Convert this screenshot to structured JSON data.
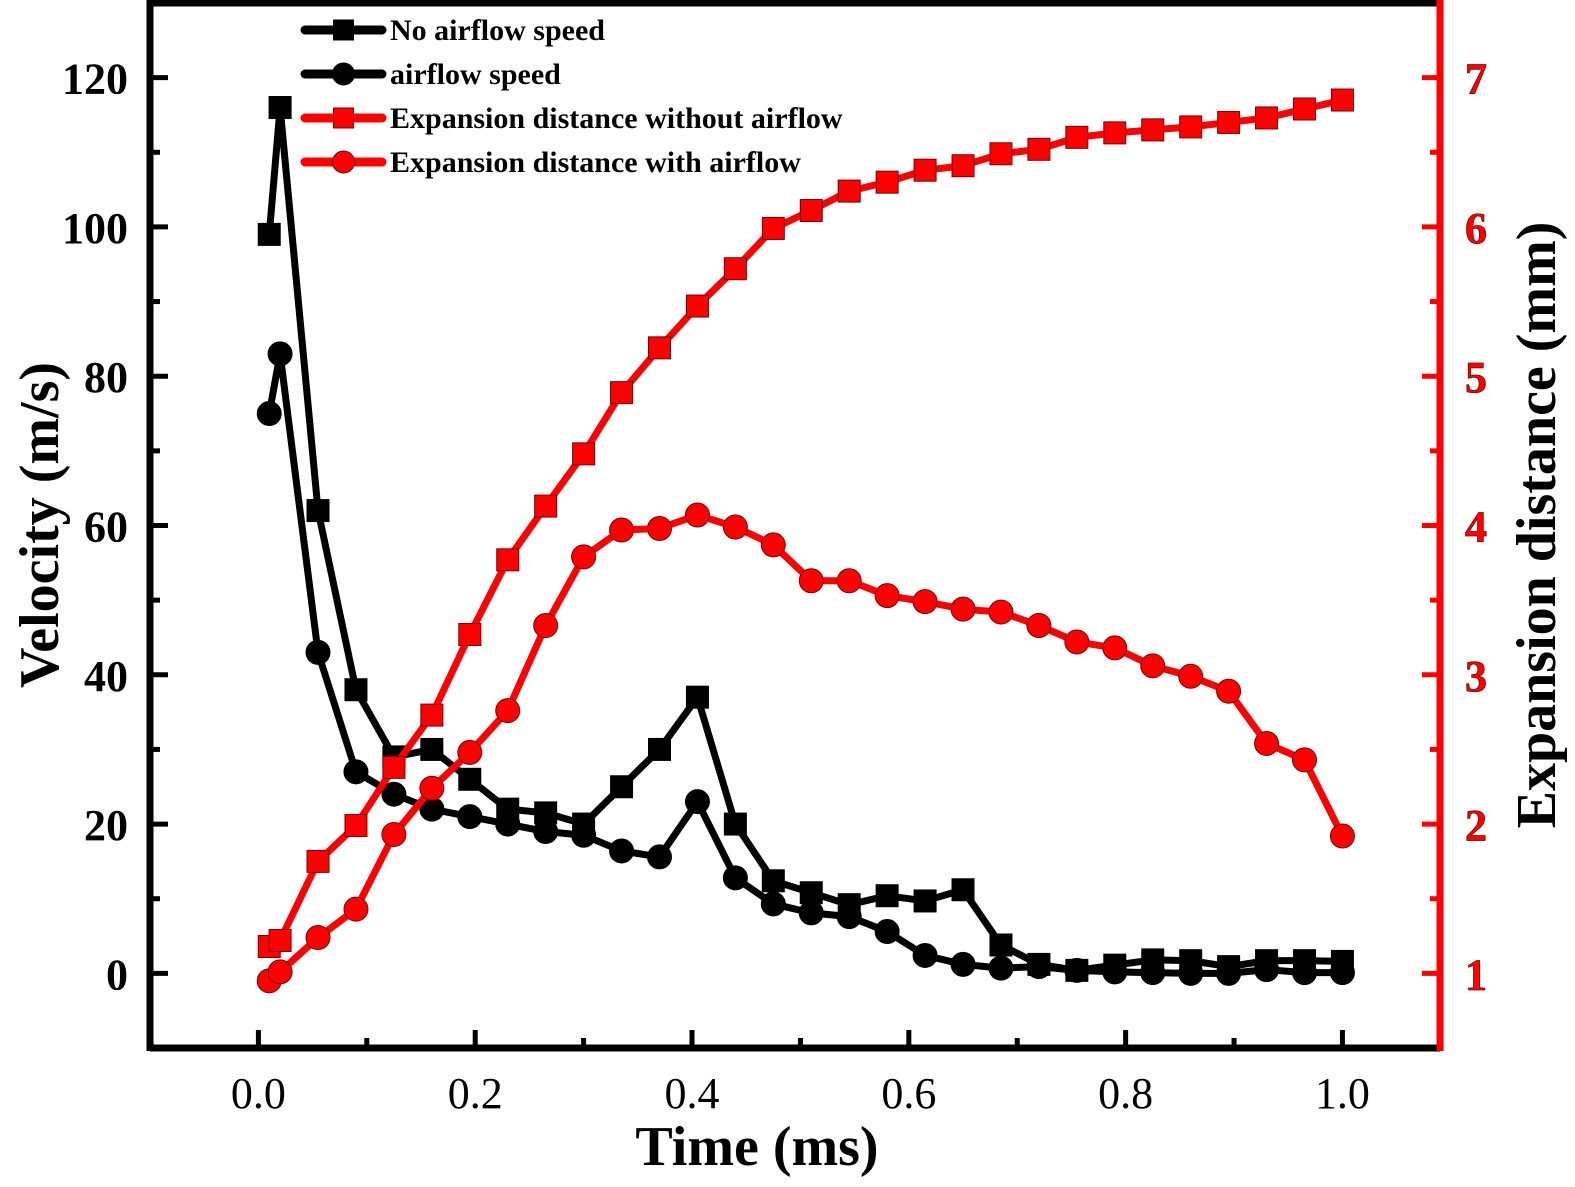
{
  "chart_data": {
    "type": "line",
    "title": "",
    "xlabel": "Time (ms)",
    "ylabel": "Velocity (m/s)",
    "y2label": "Expansion distance (mm)",
    "xlim": [
      -0.1,
      1.09
    ],
    "ylim": [
      -10,
      130
    ],
    "y2lim": [
      0.5,
      7.5
    ],
    "grid": false,
    "legend_position": "top-left",
    "xticks": [
      0.0,
      0.2,
      0.4,
      0.6,
      0.8,
      1.0
    ],
    "xtick_labels": [
      "0.0",
      "0.2",
      "0.4",
      "0.6",
      "0.8",
      "1.0"
    ],
    "yticks": [
      0,
      20,
      40,
      60,
      80,
      100,
      120
    ],
    "ytick_labels": [
      "0",
      "20",
      "40",
      "60",
      "80",
      "100",
      "120"
    ],
    "y2ticks": [
      1,
      2,
      3,
      4,
      5,
      6,
      7
    ],
    "y2tick_labels": [
      "1",
      "2",
      "3",
      "4",
      "5",
      "6",
      "7"
    ],
    "x": [
      0.01,
      0.02,
      0.055,
      0.09,
      0.125,
      0.16,
      0.195,
      0.23,
      0.265,
      0.3,
      0.335,
      0.37,
      0.405,
      0.44,
      0.475,
      0.51,
      0.545,
      0.58,
      0.615,
      0.65,
      0.685,
      0.72,
      0.755,
      0.79,
      0.825,
      0.86,
      0.895,
      0.93,
      0.965,
      1.0
    ],
    "series": [
      {
        "name": "No airflow speed",
        "axis": "left",
        "color": "#000000",
        "marker": "square",
        "values": [
          99,
          116,
          62,
          38,
          29,
          30,
          26,
          22,
          21.5,
          20,
          25,
          30,
          37,
          20,
          12.4,
          10.8,
          9.2,
          10.4,
          9.7,
          11.2,
          3.8,
          1.2,
          0.4,
          1.1,
          1.8,
          1.7,
          0.9,
          1.7,
          1.7,
          1.6
        ]
      },
      {
        "name": "airflow speed",
        "axis": "left",
        "color": "#000000",
        "marker": "circle",
        "values": [
          75,
          83,
          43,
          27,
          24,
          22,
          21,
          20,
          19,
          18.5,
          16.4,
          15.6,
          23,
          12.8,
          9.3,
          8.1,
          7.6,
          5.6,
          2.4,
          1.2,
          0.7,
          0.9,
          0.4,
          0.2,
          0.1,
          0.0,
          0.0,
          0.5,
          0.1,
          0.1
        ]
      },
      {
        "name": "Expansion distance without airflow",
        "axis": "right",
        "color": "#ff0000",
        "marker": "square",
        "values": [
          1.18,
          1.22,
          1.75,
          1.99,
          2.38,
          2.73,
          3.27,
          3.77,
          4.13,
          4.48,
          4.89,
          5.19,
          5.47,
          5.72,
          5.99,
          6.11,
          6.24,
          6.3,
          6.38,
          6.41,
          6.49,
          6.52,
          6.6,
          6.63,
          6.65,
          6.67,
          6.7,
          6.73,
          6.79,
          6.85
        ]
      },
      {
        "name": "Expansion distance with airflow",
        "axis": "right",
        "color": "#ff0000",
        "marker": "circle",
        "values": [
          0.95,
          1.01,
          1.24,
          1.43,
          1.93,
          2.24,
          2.48,
          2.76,
          3.33,
          3.79,
          3.97,
          3.98,
          4.07,
          3.99,
          3.87,
          3.63,
          3.63,
          3.53,
          3.49,
          3.44,
          3.42,
          3.33,
          3.22,
          3.18,
          3.06,
          2.99,
          2.89,
          2.54,
          2.43,
          1.92
        ]
      }
    ]
  }
}
